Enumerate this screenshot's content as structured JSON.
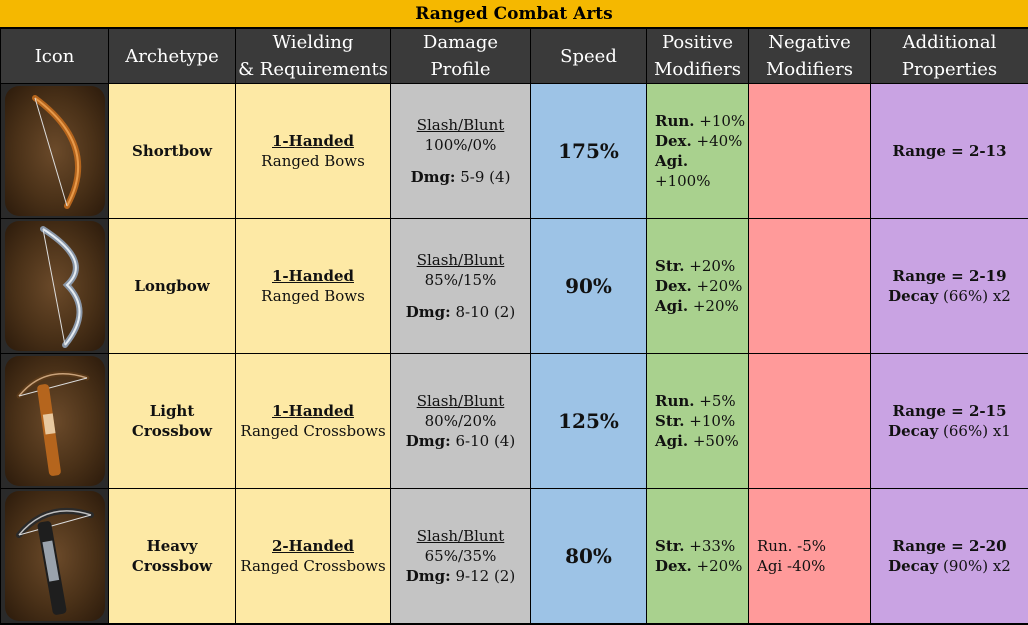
{
  "title": "Ranged Combat Arts",
  "headers": {
    "icon": "Icon",
    "archetype": "Archetype",
    "wielding_1": "Wielding",
    "wielding_2": "& Requirements",
    "damage_1": "Damage",
    "damage_2": "Profile",
    "speed": "Speed",
    "positive_1": "Positive",
    "positive_2": "Modifiers",
    "negative_1": "Negative",
    "negative_2": "Modifiers",
    "additional_1": "Additional",
    "additional_2": "Properties"
  },
  "rows": [
    {
      "icon": "shortbow-icon",
      "archetype_1": "Shortbow",
      "archetype_2": "",
      "hand": "1-Handed",
      "weapon_class": "Ranged Bows",
      "profile_label": "Slash/Blunt",
      "profile_value": "100%/0%",
      "dmg_label": "Dmg:",
      "dmg_value": "5-9 (4)",
      "speed": "175%",
      "positive": [
        {
          "stat": "Run.",
          "value": "+10%"
        },
        {
          "stat": "Dex.",
          "value": "+40%"
        },
        {
          "stat": "Agi.",
          "value": "+100%"
        }
      ],
      "negative": [],
      "range_label": "Range = 2-13",
      "decay_label": "",
      "decay_value": ""
    },
    {
      "icon": "longbow-icon",
      "archetype_1": "Longbow",
      "archetype_2": "",
      "hand": "1-Handed",
      "weapon_class": "Ranged Bows",
      "profile_label": "Slash/Blunt",
      "profile_value": "85%/15%",
      "dmg_label": "Dmg:",
      "dmg_value": "8-10 (2)",
      "speed": "90%",
      "positive": [
        {
          "stat": "Str.",
          "value": "+20%"
        },
        {
          "stat": "Dex.",
          "value": "+20%"
        },
        {
          "stat": "Agi.",
          "value": "+20%"
        }
      ],
      "negative": [],
      "range_label": "Range = 2-19",
      "decay_label": "Decay",
      "decay_value": "(66%) x2"
    },
    {
      "icon": "light-crossbow-icon",
      "archetype_1": "Light",
      "archetype_2": "Crossbow",
      "hand": "1-Handed",
      "weapon_class": "Ranged Crossbows",
      "profile_label": "Slash/Blunt",
      "profile_value": "80%/20%",
      "dmg_label": "Dmg:",
      "dmg_value": "6-10 (4)",
      "speed": "125%",
      "positive": [
        {
          "stat": "Run.",
          "value": "+5%"
        },
        {
          "stat": "Str.",
          "value": "+10%"
        },
        {
          "stat": "Agi.",
          "value": "+50%"
        }
      ],
      "negative": [],
      "range_label": "Range = 2-15",
      "decay_label": "Decay",
      "decay_value": "(66%) x1"
    },
    {
      "icon": "heavy-crossbow-icon",
      "archetype_1": "Heavy",
      "archetype_2": "Crossbow",
      "hand": "2-Handed",
      "weapon_class": "Ranged Crossbows",
      "profile_label": "Slash/Blunt",
      "profile_value": "65%/35%",
      "dmg_label": "Dmg:",
      "dmg_value": "9-12 (2)",
      "speed": "80%",
      "positive": [
        {
          "stat": "Str.",
          "value": "+33%"
        },
        {
          "stat": "Dex.",
          "value": "+20%"
        }
      ],
      "negative": [
        {
          "text": "Run. -5%"
        },
        {
          "text": "Agi -40%"
        }
      ],
      "range_label": "Range = 2-20",
      "decay_label": "Decay",
      "decay_value": "(90%) x2"
    }
  ]
}
